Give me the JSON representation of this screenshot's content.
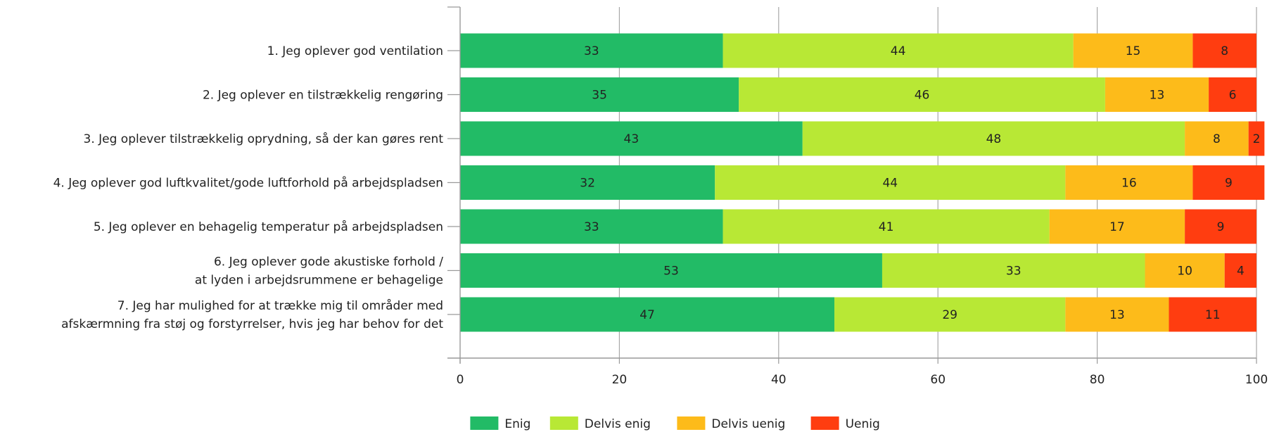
{
  "chart_data": {
    "type": "bar",
    "orientation": "horizontal",
    "stacked": true,
    "categories": [
      "1. Jeg oplever god ventilation",
      "2. Jeg oplever en tilstrækkelig rengøring",
      "3. Jeg oplever tilstrækkelig oprydning, så der kan gøres rent",
      "4. Jeg oplever god luftkvalitet/gode luftforhold på arbejdspladsen",
      "5. Jeg oplever en behagelig temperatur på arbejdspladsen",
      "6. Jeg oplever gode akustiske forhold /\nat lyden i arbejdsrummene er behagelige",
      "7. Jeg har mulighed for at trække mig til områder med\nafskærmning fra støj og forstyrrelser, hvis jeg har behov for det"
    ],
    "series": [
      {
        "name": "Enig",
        "color": "#22bb66",
        "values": [
          33,
          35,
          43,
          32,
          33,
          53,
          47
        ]
      },
      {
        "name": "Delvis enig",
        "color": "#b8e835",
        "values": [
          44,
          46,
          48,
          44,
          41,
          33,
          29
        ]
      },
      {
        "name": "Delvis uenig",
        "color": "#fdbb1a",
        "values": [
          15,
          13,
          8,
          16,
          17,
          10,
          13
        ]
      },
      {
        "name": "Uenig",
        "color": "#ff3d10",
        "values": [
          8,
          6,
          2,
          9,
          9,
          4,
          11
        ]
      }
    ],
    "xlim": [
      0,
      100
    ],
    "xticks": [
      0,
      20,
      40,
      60,
      80,
      100
    ],
    "grid": true,
    "legend": "bottom-center",
    "title": "",
    "xlabel": "",
    "ylabel": ""
  }
}
